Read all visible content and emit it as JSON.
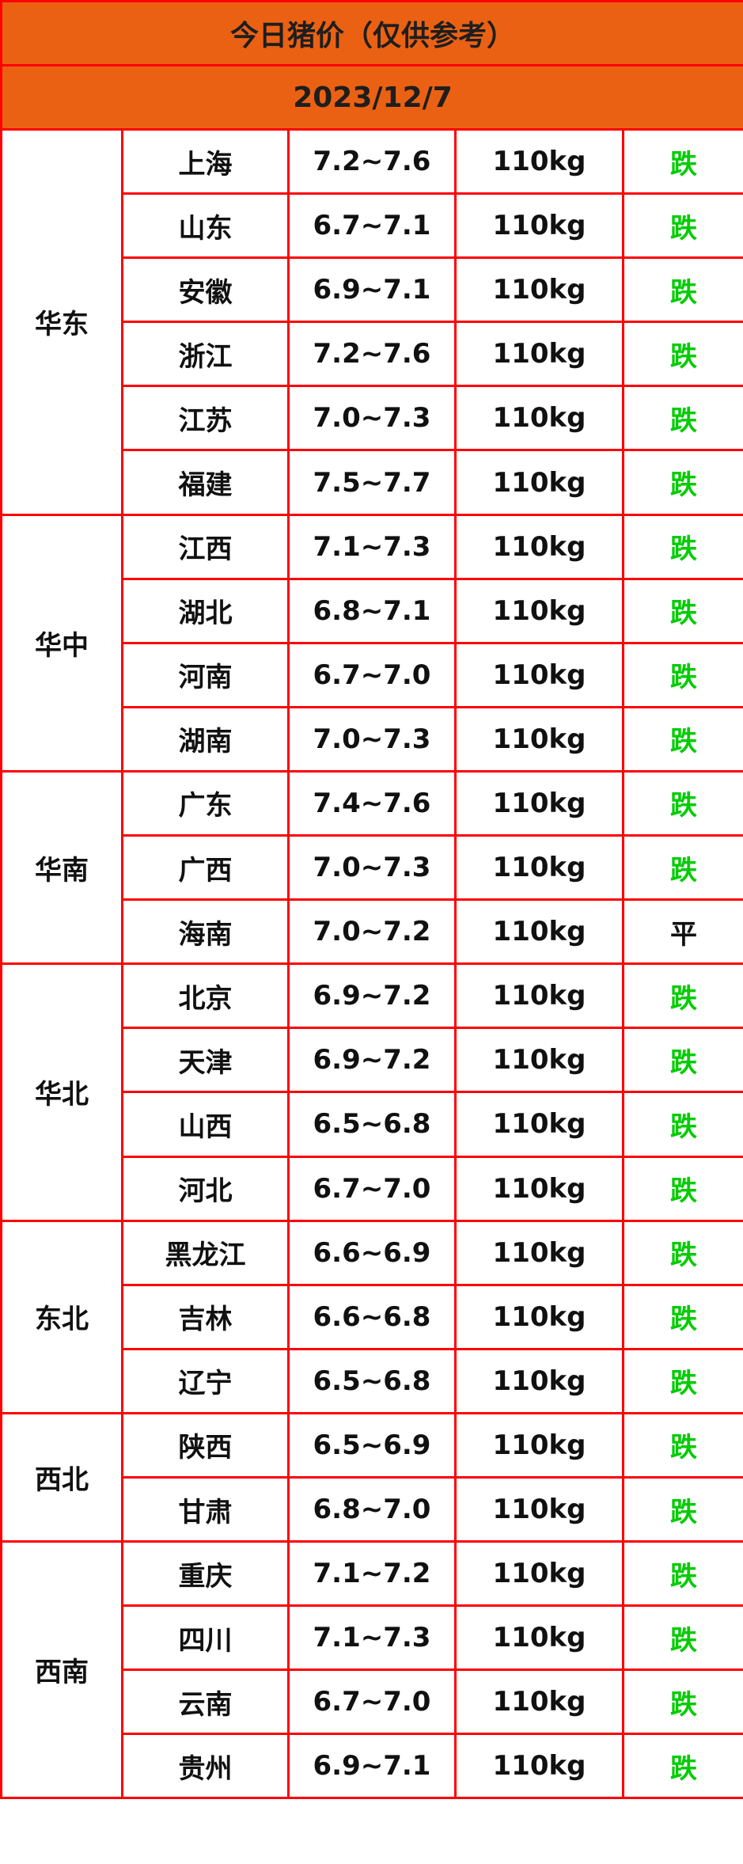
{
  "title": "今日猪价（仅供参考）",
  "date": "2023/12/7",
  "colors": {
    "header_bg": "#eb6113",
    "border": "#ff0000",
    "down": "#00cc00",
    "flat": "#111111"
  },
  "regions": [
    {
      "name": "华东",
      "rows": [
        {
          "province": "上海",
          "price": "7.2~7.6",
          "weight": "110kg",
          "trend": "跌"
        },
        {
          "province": "山东",
          "price": "6.7~7.1",
          "weight": "110kg",
          "trend": "跌"
        },
        {
          "province": "安徽",
          "price": "6.9~7.1",
          "weight": "110kg",
          "trend": "跌"
        },
        {
          "province": "浙江",
          "price": "7.2~7.6",
          "weight": "110kg",
          "trend": "跌"
        },
        {
          "province": "江苏",
          "price": "7.0~7.3",
          "weight": "110kg",
          "trend": "跌"
        },
        {
          "province": "福建",
          "price": "7.5~7.7",
          "weight": "110kg",
          "trend": "跌"
        }
      ]
    },
    {
      "name": "华中",
      "rows": [
        {
          "province": "江西",
          "price": "7.1~7.3",
          "weight": "110kg",
          "trend": "跌"
        },
        {
          "province": "湖北",
          "price": "6.8~7.1",
          "weight": "110kg",
          "trend": "跌"
        },
        {
          "province": "河南",
          "price": "6.7~7.0",
          "weight": "110kg",
          "trend": "跌"
        },
        {
          "province": "湖南",
          "price": "7.0~7.3",
          "weight": "110kg",
          "trend": "跌"
        }
      ]
    },
    {
      "name": "华南",
      "rows": [
        {
          "province": "广东",
          "price": "7.4~7.6",
          "weight": "110kg",
          "trend": "跌"
        },
        {
          "province": "广西",
          "price": "7.0~7.3",
          "weight": "110kg",
          "trend": "跌"
        },
        {
          "province": "海南",
          "price": "7.0~7.2",
          "weight": "110kg",
          "trend": "平"
        }
      ]
    },
    {
      "name": "华北",
      "rows": [
        {
          "province": "北京",
          "price": "6.9~7.2",
          "weight": "110kg",
          "trend": "跌"
        },
        {
          "province": "天津",
          "price": "6.9~7.2",
          "weight": "110kg",
          "trend": "跌"
        },
        {
          "province": "山西",
          "price": "6.5~6.8",
          "weight": "110kg",
          "trend": "跌"
        },
        {
          "province": "河北",
          "price": "6.7~7.0",
          "weight": "110kg",
          "trend": "跌"
        }
      ]
    },
    {
      "name": "东北",
      "rows": [
        {
          "province": "黑龙江",
          "price": "6.6~6.9",
          "weight": "110kg",
          "trend": "跌"
        },
        {
          "province": "吉林",
          "price": "6.6~6.8",
          "weight": "110kg",
          "trend": "跌"
        },
        {
          "province": "辽宁",
          "price": "6.5~6.8",
          "weight": "110kg",
          "trend": "跌"
        }
      ]
    },
    {
      "name": "西北",
      "rows": [
        {
          "province": "陕西",
          "price": "6.5~6.9",
          "weight": "110kg",
          "trend": "跌"
        },
        {
          "province": "甘肃",
          "price": "6.8~7.0",
          "weight": "110kg",
          "trend": "跌"
        }
      ]
    },
    {
      "name": "西南",
      "rows": [
        {
          "province": "重庆",
          "price": "7.1~7.2",
          "weight": "110kg",
          "trend": "跌"
        },
        {
          "province": "四川",
          "price": "7.1~7.3",
          "weight": "110kg",
          "trend": "跌"
        },
        {
          "province": "云南",
          "price": "6.7~7.0",
          "weight": "110kg",
          "trend": "跌"
        },
        {
          "province": "贵州",
          "price": "6.9~7.1",
          "weight": "110kg",
          "trend": "跌"
        }
      ]
    }
  ]
}
